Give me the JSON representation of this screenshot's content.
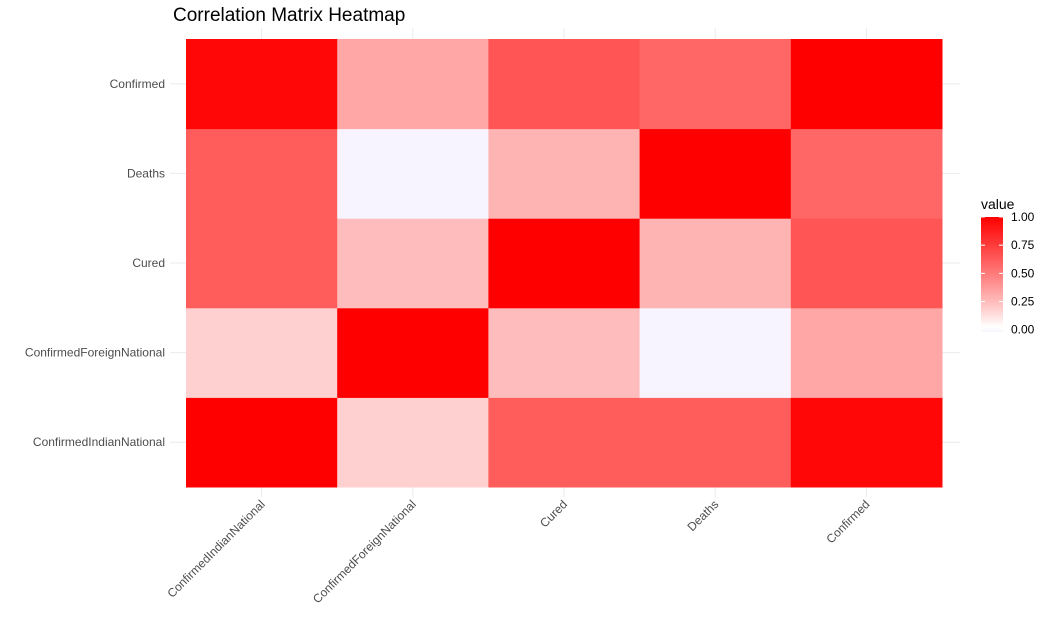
{
  "chart_data": {
    "type": "heatmap",
    "title": "Correlation Matrix Heatmap",
    "x_categories": [
      "ConfirmedIndianNational",
      "ConfirmedForeignNational",
      "Cured",
      "Deaths",
      "Confirmed"
    ],
    "y_categories": [
      "ConfirmedIndianNational",
      "ConfirmedForeignNational",
      "Cured",
      "Deaths",
      "Confirmed"
    ],
    "values": [
      [
        1.0,
        0.18,
        0.62,
        0.62,
        0.97
      ],
      [
        0.18,
        1.0,
        0.25,
        -0.02,
        0.33
      ],
      [
        0.62,
        0.25,
        1.0,
        0.28,
        0.65
      ],
      [
        0.62,
        -0.02,
        0.28,
        1.0,
        0.58
      ],
      [
        0.97,
        0.33,
        0.65,
        0.58,
        1.0
      ]
    ],
    "legend": {
      "title": "value",
      "ticks": [
        "1.00",
        "0.75",
        "0.50",
        "0.25",
        "0.00"
      ],
      "range": [
        -0.02,
        1.0
      ],
      "low_color": "#f8f4ff",
      "high_color": "#ff0000"
    }
  }
}
